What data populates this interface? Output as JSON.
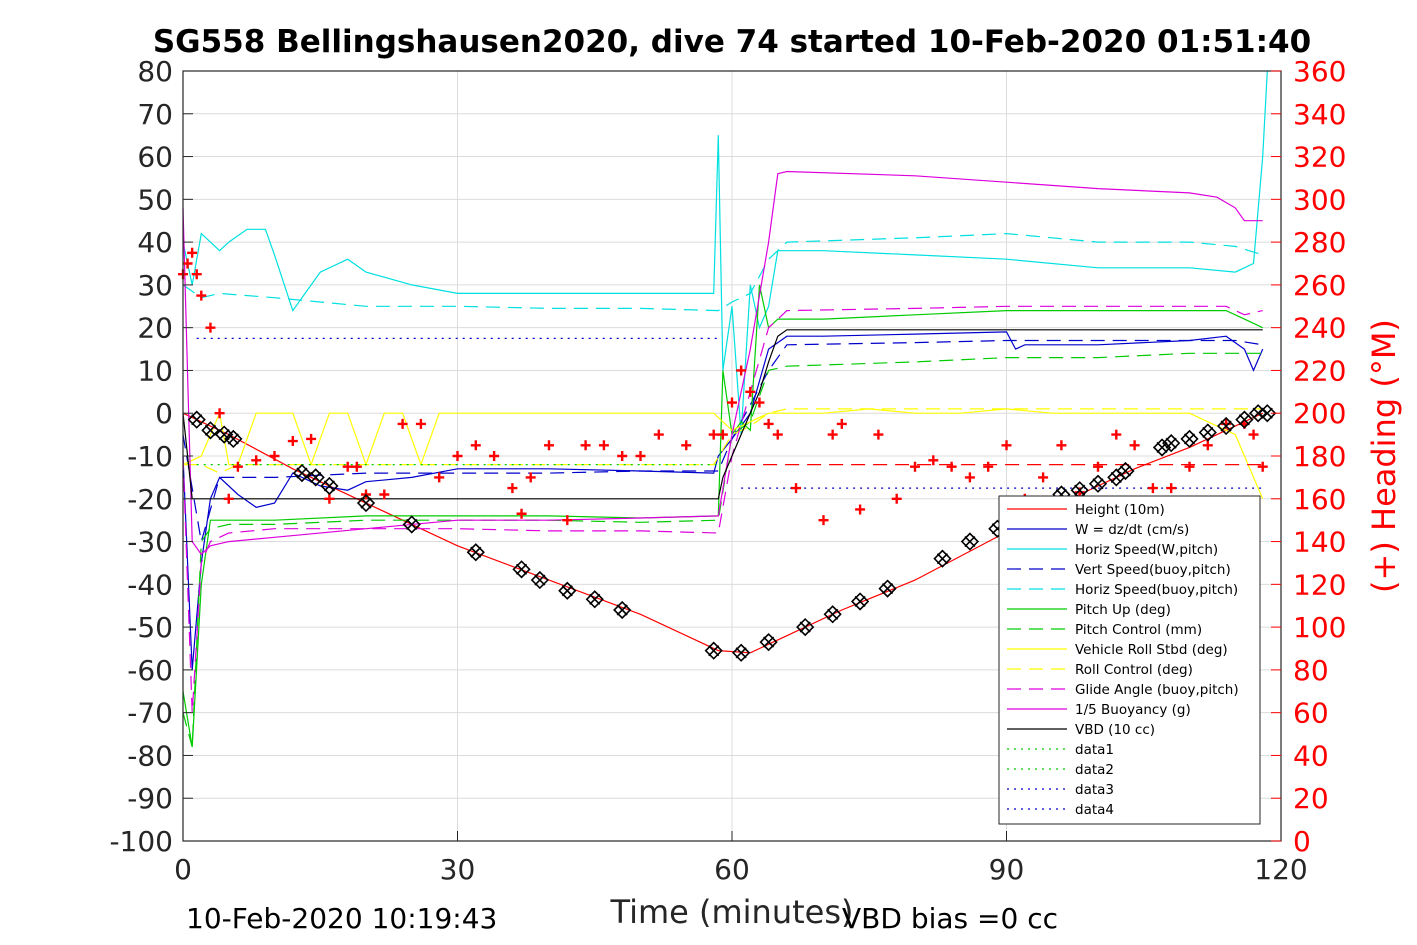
{
  "chart_data": {
    "type": "line",
    "title": "SG558 Bellingshausen2020, dive 74 started 10-Feb-2020 01:51:40",
    "xlabel": "Time (minutes)",
    "ylabel": "",
    "y2label": "(+) Heading (°M)",
    "xlim": [
      0,
      120
    ],
    "ylim": [
      -100,
      80
    ],
    "y2lim": [
      0,
      360
    ],
    "xticks": [
      0,
      30,
      60,
      90,
      120
    ],
    "yticks": [
      80,
      70,
      60,
      50,
      40,
      30,
      20,
      10,
      0,
      -10,
      -20,
      -30,
      -40,
      -50,
      -60,
      -70,
      -80,
      -90,
      -100
    ],
    "y2ticks": [
      360,
      340,
      320,
      300,
      280,
      260,
      240,
      220,
      200,
      180,
      160,
      140,
      120,
      100,
      80,
      60,
      40,
      20,
      0
    ],
    "grid": true,
    "legend_position": "lower-right",
    "footer_left": "10-Feb-2020 10:19:43",
    "footer_right": "VBD bias =0 cc",
    "colors": {
      "height": "#ff0000",
      "w": "#0000cc",
      "horiz_w": "#00e0e0",
      "vert_buoy": "#0000cc",
      "horiz_buoy": "#00e0e0",
      "pitch": "#00cc00",
      "pitch_ctrl": "#00cc00",
      "roll": "#ffff00",
      "roll_ctrl": "#ffff00",
      "glide": "#dd00dd",
      "buoyancy": "#dd00dd",
      "vbd": "#000000",
      "heading": "#ff0000",
      "heading_axis": "#ff0000"
    },
    "legend": [
      {
        "key": "height",
        "label": "Height (10m)",
        "color": "#ff0000",
        "style": "solid"
      },
      {
        "key": "w",
        "label": "W = dz/dt (cm/s)",
        "color": "#0000cc",
        "style": "solid"
      },
      {
        "key": "horiz_w",
        "label": "Horiz Speed(W,pitch)",
        "color": "#00e0e0",
        "style": "solid"
      },
      {
        "key": "vert_buoy",
        "label": "Vert Speed(buoy,pitch)",
        "color": "#0000cc",
        "style": "dashed"
      },
      {
        "key": "horiz_buoy",
        "label": "Horiz Speed(buoy,pitch)",
        "color": "#00e0e0",
        "style": "dashed"
      },
      {
        "key": "pitch",
        "label": "Pitch Up (deg)",
        "color": "#00cc00",
        "style": "solid"
      },
      {
        "key": "pitch_ctrl",
        "label": "Pitch Control (mm)",
        "color": "#00cc00",
        "style": "dashed"
      },
      {
        "key": "roll",
        "label": "Vehicle Roll Stbd (deg)",
        "color": "#ffff00",
        "style": "solid"
      },
      {
        "key": "roll_ctrl",
        "label": "Roll Control (deg)",
        "color": "#ffff00",
        "style": "dashed"
      },
      {
        "key": "glide",
        "label": "Glide Angle (buoy,pitch)",
        "color": "#dd00dd",
        "style": "dashed"
      },
      {
        "key": "buoyancy",
        "label": "1/5 Buoyancy (g)",
        "color": "#dd00dd",
        "style": "solid"
      },
      {
        "key": "vbd",
        "label": "VBD (10 cc)",
        "color": "#000000",
        "style": "solid"
      },
      {
        "key": "data1",
        "label": "data1",
        "color": "#00cc00",
        "style": "dotted"
      },
      {
        "key": "data2",
        "label": "data2",
        "color": "#00cc00",
        "style": "dotted"
      },
      {
        "key": "data3",
        "label": "data3",
        "color": "#0000cc",
        "style": "dotted"
      },
      {
        "key": "data4",
        "label": "data4",
        "color": "#0000cc",
        "style": "dotted"
      }
    ],
    "series": [
      {
        "key": "height",
        "style": "solid",
        "x": [
          0,
          1.5,
          2,
          5,
          12,
          20,
          25,
          30,
          40,
          50,
          58.5,
          62,
          66,
          72,
          80,
          88,
          96,
          104,
          110,
          114,
          118
        ],
        "y": [
          0,
          -1.5,
          -2,
          -5,
          -13,
          -21,
          -26,
          -31,
          -39,
          -47,
          -55.5,
          -56,
          -52,
          -46,
          -39,
          -30,
          -21,
          -13,
          -8,
          -4,
          0
        ]
      },
      {
        "key": "w",
        "style": "solid",
        "x": [
          0,
          1,
          2,
          3,
          4,
          6,
          8,
          10,
          12,
          15,
          18,
          20,
          25,
          30,
          40,
          50,
          58,
          58.5,
          60,
          62,
          64,
          66,
          70,
          80,
          90,
          91,
          92,
          100,
          110,
          114,
          116,
          117,
          118
        ],
        "y": [
          -10,
          -60,
          -35,
          -20,
          -15,
          -19,
          -22,
          -21,
          -14,
          -17,
          -18,
          -16,
          -15,
          -13,
          -13,
          -13.5,
          -14,
          -10,
          -6,
          0,
          15,
          18,
          18,
          18.5,
          19,
          15,
          16,
          16,
          17,
          18,
          15,
          10,
          15
        ]
      },
      {
        "key": "horiz_w",
        "style": "solid",
        "x": [
          0,
          1,
          2,
          3,
          4,
          5,
          7,
          9,
          10,
          12,
          15,
          18,
          20,
          25,
          30,
          40,
          50,
          58,
          58.5,
          59,
          60,
          61,
          62,
          63,
          64,
          65,
          70,
          80,
          90,
          100,
          110,
          115,
          117,
          118,
          118.5
        ],
        "y": [
          40,
          30,
          42,
          40,
          38,
          40,
          43,
          43,
          37,
          24,
          33,
          36,
          33,
          30,
          28,
          28,
          28,
          28,
          65,
          10,
          25,
          -5,
          30,
          20,
          25,
          38,
          38,
          37,
          36,
          34,
          34,
          33,
          35,
          60,
          80
        ]
      },
      {
        "key": "vert_buoy",
        "style": "dashed",
        "x": [
          0,
          2,
          4,
          10,
          20,
          30,
          40,
          50,
          58.5,
          60,
          62,
          64,
          66,
          80,
          90,
          100,
          110,
          115,
          118
        ],
        "y": [
          -5,
          -30,
          -15,
          -15,
          -14,
          -14,
          -14,
          -13.5,
          -13.5,
          -6,
          2,
          10,
          16,
          16.5,
          17,
          17,
          17,
          17,
          16
        ]
      },
      {
        "key": "horiz_buoy",
        "style": "dashed",
        "x": [
          0,
          2,
          4,
          10,
          20,
          30,
          40,
          50,
          58.5,
          60,
          62,
          64,
          66,
          80,
          90,
          100,
          110,
          115,
          118
        ],
        "y": [
          30,
          27,
          28,
          27,
          25,
          25,
          24.5,
          24.5,
          24,
          26,
          28,
          36,
          40,
          41,
          42,
          40,
          40,
          39,
          37
        ]
      },
      {
        "key": "pitch",
        "style": "solid",
        "x": [
          0,
          1,
          2,
          3,
          5,
          10,
          20,
          30,
          40,
          50,
          58.5,
          59,
          60,
          61,
          62,
          63,
          64,
          65,
          70,
          80,
          90,
          100,
          110,
          114,
          116,
          118
        ],
        "y": [
          -65,
          -78,
          -40,
          -25,
          -25,
          -25,
          -24,
          -24,
          -24,
          -24.5,
          -24,
          10,
          -5,
          -2,
          -4,
          30,
          20,
          22,
          22,
          23,
          24,
          24,
          24,
          24,
          22,
          20
        ]
      },
      {
        "key": "pitch_ctrl",
        "style": "dashed",
        "x": [
          0,
          1,
          2,
          3,
          5,
          10,
          20,
          30,
          40,
          50,
          58.5,
          60,
          62,
          64,
          66,
          80,
          90,
          100,
          110,
          115,
          118
        ],
        "y": [
          -70,
          -78,
          -30,
          -27,
          -26,
          -26,
          -25,
          -25,
          -25,
          -25.5,
          -25,
          -5,
          -2,
          10,
          11,
          12,
          13,
          13,
          14,
          14,
          14
        ]
      },
      {
        "key": "roll",
        "style": "solid",
        "x": [
          0,
          2,
          4,
          5,
          6,
          8,
          10,
          12,
          14,
          16,
          18,
          20,
          22,
          24,
          26,
          28,
          30,
          40,
          50,
          58,
          60,
          62,
          64,
          66,
          70,
          75,
          80,
          85,
          90,
          95,
          100,
          105,
          110,
          115,
          118
        ],
        "y": [
          -12,
          -10,
          0,
          -12,
          -12,
          0,
          0,
          0,
          -12,
          0,
          0,
          -12,
          0,
          0,
          -12,
          0,
          0,
          0,
          0,
          0,
          -4,
          -2,
          0,
          0,
          0,
          1,
          0,
          0,
          1,
          0,
          0,
          0,
          0,
          -5,
          -20
        ]
      },
      {
        "key": "roll_ctrl",
        "style": "dashed",
        "x": [
          0,
          2,
          4,
          6,
          10,
          20,
          30,
          40,
          50,
          58,
          60,
          62,
          64,
          66,
          70,
          80,
          90,
          100,
          110,
          115,
          118
        ],
        "y": [
          -12,
          -12,
          -14,
          -12,
          -12,
          -12,
          -12,
          -12,
          -12,
          -12,
          -5,
          -3,
          0,
          1,
          1,
          1,
          1,
          1,
          1,
          1,
          1
        ]
      },
      {
        "key": "glide",
        "style": "dashed",
        "x": [
          0,
          1,
          2,
          3,
          5,
          10,
          20,
          30,
          40,
          50,
          58.5,
          60,
          62,
          64,
          66,
          80,
          90,
          100,
          110,
          114,
          116,
          118
        ],
        "y": [
          -10,
          -70,
          -35,
          -30,
          -28,
          -27,
          -27,
          -27,
          -27.5,
          -27.5,
          -28,
          -10,
          5,
          20,
          24,
          24.5,
          25,
          25,
          25,
          25,
          23,
          24
        ]
      },
      {
        "key": "buoyancy",
        "style": "solid",
        "x": [
          0,
          1,
          2,
          3,
          5,
          10,
          20,
          30,
          40,
          50,
          58.5,
          60,
          62,
          64,
          65,
          66,
          80,
          90,
          100,
          110,
          113,
          115,
          116,
          118
        ],
        "y": [
          48,
          -30,
          -33,
          -31,
          -30,
          -29,
          -27,
          -25,
          -25,
          -24.5,
          -24,
          -5,
          15,
          40,
          56,
          56.5,
          55.5,
          54,
          52.5,
          51.5,
          50.5,
          48,
          45,
          45
        ]
      },
      {
        "key": "vbd",
        "style": "solid",
        "x": [
          0,
          1,
          2,
          3,
          4,
          10,
          20,
          30,
          40,
          50,
          58.5,
          59,
          60,
          61,
          62,
          63,
          64,
          65,
          66,
          80,
          90,
          100,
          110,
          115,
          118
        ],
        "y": [
          0,
          -20,
          -20,
          -20,
          -20,
          -20,
          -20,
          -20,
          -20,
          -20,
          -20,
          -15,
          -10,
          -5,
          0,
          5,
          12,
          18,
          19.5,
          19.5,
          19.5,
          19.5,
          19.5,
          19.5,
          19.5
        ]
      },
      {
        "key": "data3",
        "style": "dotted",
        "x": [
          1.5,
          30,
          58.5
        ],
        "y": [
          17.5,
          17.5,
          17.5
        ]
      },
      {
        "key": "data4",
        "style": "dotted",
        "x": [
          61,
          90,
          118
        ],
        "y": [
          -17.5,
          -17.5,
          -17.5
        ]
      },
      {
        "key": "ref_red",
        "style": "dashed",
        "x": [
          61,
          118
        ],
        "y": [
          -12,
          -12
        ]
      },
      {
        "key": "ref_green",
        "style": "dotted",
        "x": [
          1.5,
          58.5
        ],
        "y": [
          -12,
          -12
        ]
      }
    ],
    "heading": {
      "axis": "right",
      "marker": "+",
      "x": [
        0,
        0.5,
        1,
        1.5,
        2,
        3,
        4,
        5,
        6,
        8,
        10,
        12,
        14,
        16,
        18,
        19,
        20,
        22,
        24,
        26,
        28,
        30,
        32,
        34,
        36,
        37,
        38,
        40,
        42,
        44,
        46,
        48,
        50,
        52,
        55,
        58,
        59,
        60,
        61,
        62,
        63,
        64,
        65,
        67,
        70,
        71,
        72,
        74,
        76,
        78,
        80,
        82,
        84,
        86,
        88,
        90,
        92,
        94,
        96,
        98,
        100,
        102,
        104,
        106,
        108,
        110,
        112,
        114,
        116,
        117,
        118
      ],
      "y": [
        265,
        270,
        275,
        265,
        255,
        240,
        200,
        160,
        175,
        178,
        180,
        187,
        188,
        160,
        175,
        175,
        162,
        162,
        195,
        195,
        170,
        180,
        185,
        180,
        165,
        153,
        170,
        185,
        150,
        185,
        185,
        180,
        180,
        190,
        185,
        190,
        190,
        205,
        220,
        210,
        205,
        195,
        190,
        165,
        150,
        190,
        195,
        155,
        190,
        160,
        175,
        178,
        175,
        170,
        175,
        185,
        160,
        170,
        185,
        163,
        175,
        190,
        185,
        165,
        165,
        175,
        185,
        195,
        195,
        190,
        175
      ]
    },
    "markers": {
      "symbol": "diamond-with-x",
      "x": [
        1.5,
        3,
        4.5,
        5.5,
        13,
        14.5,
        16,
        20,
        25,
        32,
        37,
        39,
        42,
        45,
        48,
        58,
        61,
        64,
        68,
        71,
        74,
        77,
        83,
        86,
        89,
        96,
        98,
        100,
        102,
        103,
        107,
        108,
        110,
        112,
        114,
        116,
        117.5,
        118.5
      ],
      "y": [
        -1.5,
        -4,
        -5,
        -6,
        -14,
        -15,
        -17,
        -21,
        -26,
        -32.5,
        -36.5,
        -39,
        -41.5,
        -43.5,
        -46,
        -55.5,
        -56,
        -53.5,
        -50,
        -47,
        -44,
        -41,
        -34,
        -30,
        -27,
        -19,
        -18,
        -16.5,
        -15,
        -13.5,
        -8,
        -7,
        -6,
        -4.5,
        -3,
        -1.5,
        0,
        0
      ]
    }
  }
}
